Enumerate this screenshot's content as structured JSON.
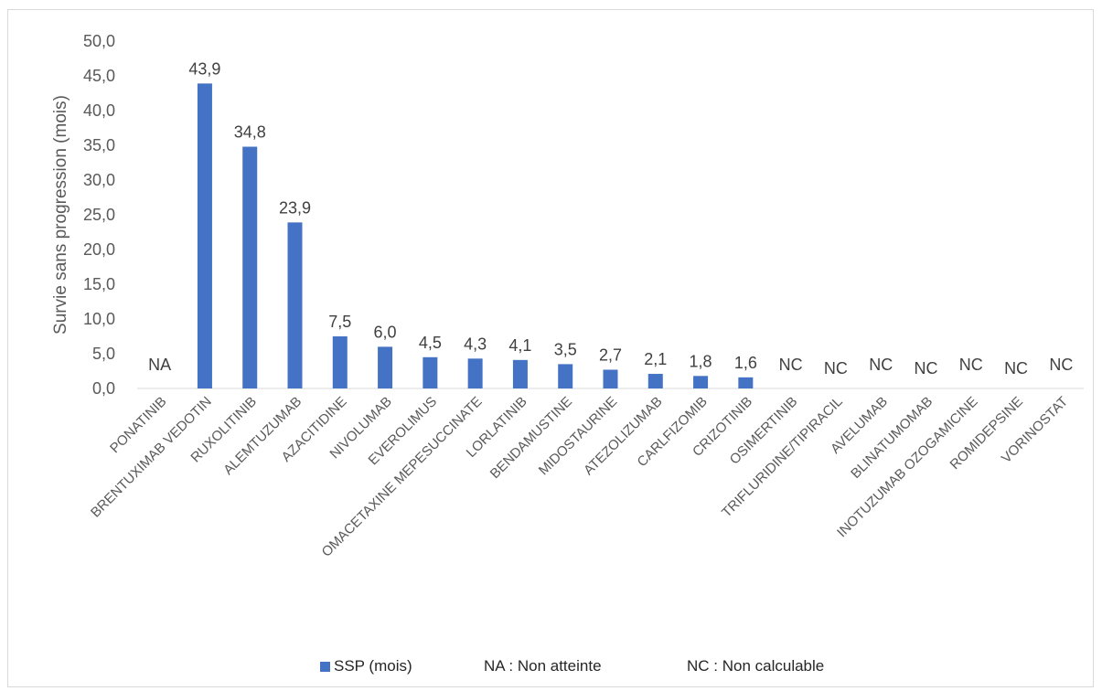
{
  "chart_data": {
    "type": "bar",
    "title": "",
    "xlabel": "",
    "ylabel": "Survie sans progression (mois)",
    "ylim": [
      0,
      50
    ],
    "yticks": [
      "0,0",
      "5,0",
      "10,0",
      "15,0",
      "20,0",
      "25,0",
      "30,0",
      "35,0",
      "40,0",
      "45,0",
      "50,0"
    ],
    "grid": false,
    "legend_position": "bottom",
    "categories": [
      "PONATINIB",
      "BRENTUXIMAB VEDOTIN",
      "RUXOLITINIB",
      "ALEMTUZUMAB",
      "AZACITIDINE",
      "NIVOLUMAB",
      "EVEROLIMUS",
      "OMACETAXINE MEPESUCCINATE",
      "LORLATINIB",
      "BENDAMUSTINE",
      "MIDOSTAURINE",
      "ATEZOLIZUMAB",
      "CARLFIZOMIB",
      "CRIZOTINIB",
      "OSIMERTINIB",
      "TRIFLURIDINE/TIPIRACIL",
      "AVELUMAB",
      "BLINATUMOMAB",
      "INOTUZUMAB OZOGAMICINE",
      "ROMIDEPSINE",
      "VORINOSTAT"
    ],
    "series": [
      {
        "name": "SSP (mois)",
        "color": "#4472c4",
        "values": [
          null,
          43.9,
          34.8,
          23.9,
          7.5,
          6.0,
          4.5,
          4.3,
          4.1,
          3.5,
          2.7,
          2.1,
          1.8,
          1.6,
          null,
          null,
          null,
          null,
          null,
          null,
          null
        ],
        "labels": [
          "NA",
          "43,9",
          "34,8",
          "23,9",
          "7,5",
          "6,0",
          "4,5",
          "4,3",
          "4,1",
          "3,5",
          "2,7",
          "2,1",
          "1,8",
          "1,6",
          "NC",
          "NC",
          "NC",
          "NC",
          "NC",
          "NC",
          "NC"
        ]
      }
    ],
    "legend_notes": [
      "NA : Non atteinte",
      "NC : Non calculable"
    ]
  }
}
